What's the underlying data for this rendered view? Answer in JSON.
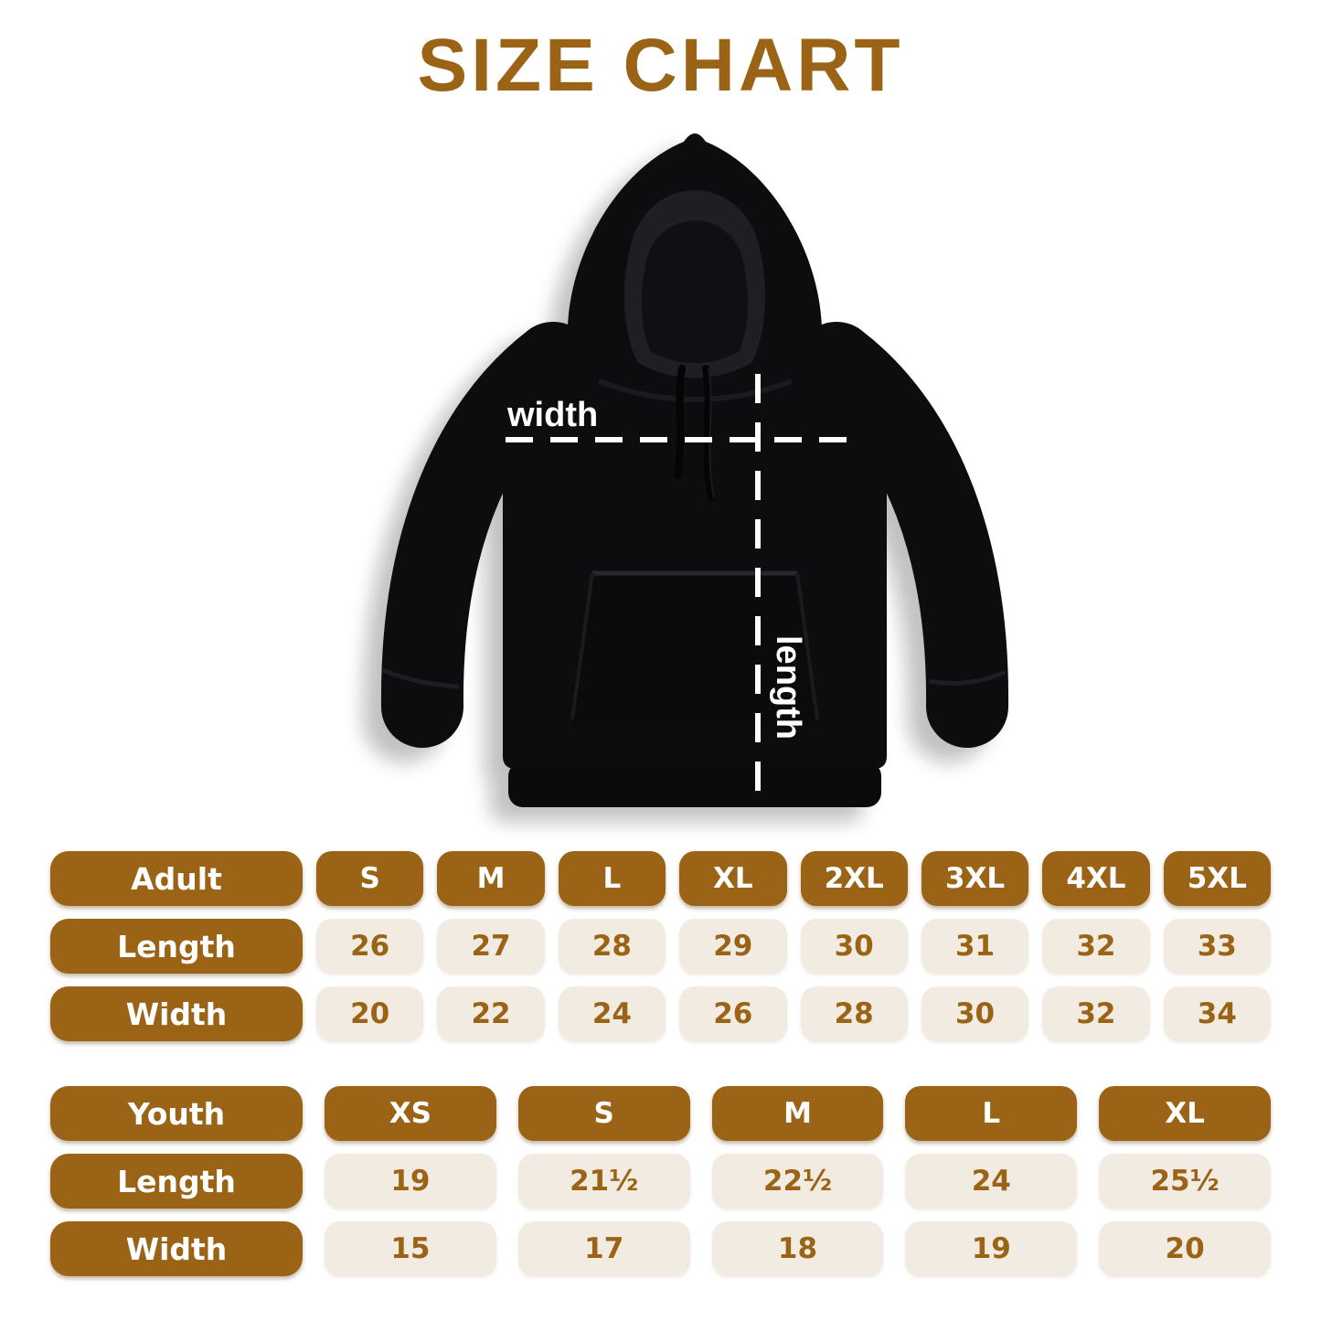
{
  "page": {
    "title": "SIZE CHART"
  },
  "colors": {
    "brown": "#9A6315",
    "cream": "#F2EBE1",
    "hoodie_black": "#0d0d10"
  },
  "diagram": {
    "width_label": "width",
    "length_label": "length"
  },
  "adult_table": {
    "header": {
      "label": "Adult",
      "sizes": [
        "S",
        "M",
        "L",
        "XL",
        "2XL",
        "3XL",
        "4XL",
        "5XL"
      ]
    },
    "rows": [
      {
        "label": "Length",
        "values": [
          "26",
          "27",
          "28",
          "29",
          "30",
          "31",
          "32",
          "33"
        ]
      },
      {
        "label": "Width",
        "values": [
          "20",
          "22",
          "24",
          "26",
          "28",
          "30",
          "32",
          "34"
        ]
      }
    ]
  },
  "youth_table": {
    "header": {
      "label": "Youth",
      "sizes": [
        "XS",
        "S",
        "M",
        "L",
        "XL"
      ]
    },
    "rows": [
      {
        "label": "Length",
        "values": [
          "19",
          "21½",
          "22½",
          "24",
          "25½"
        ]
      },
      {
        "label": "Width",
        "values": [
          "15",
          "17",
          "18",
          "19",
          "20"
        ]
      }
    ]
  }
}
